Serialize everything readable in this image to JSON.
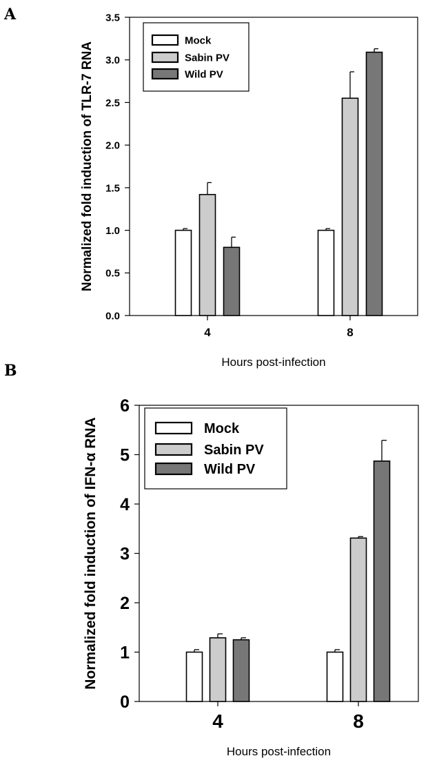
{
  "panels": {
    "a_label": "A",
    "b_label": "B"
  },
  "chart_data": [
    {
      "type": "bar",
      "panel": "A",
      "title": "",
      "xlabel": "Hours post-infection",
      "ylabel": "Normalized fold induction of TLR-7 RNA",
      "categories": [
        "4",
        "8"
      ],
      "ylim": [
        0,
        3.5
      ],
      "yticks": [
        "0.0",
        "0.5",
        "1.0",
        "1.5",
        "2.0",
        "2.5",
        "3.0",
        "3.5"
      ],
      "legend_position": "top-left",
      "series": [
        {
          "name": "Mock",
          "color": "#ffffff",
          "values": [
            1.0,
            1.0
          ],
          "errors": [
            0.02,
            0.02
          ]
        },
        {
          "name": "Sabin PV",
          "color": "#cccccc",
          "values": [
            1.42,
            2.55
          ],
          "errors": [
            0.14,
            0.31
          ]
        },
        {
          "name": "Wild PV",
          "color": "#777777",
          "values": [
            0.8,
            3.09
          ],
          "errors": [
            0.12,
            0.04
          ]
        }
      ]
    },
    {
      "type": "bar",
      "panel": "B",
      "title": "",
      "xlabel": "Hours post-infection",
      "ylabel": "Normalized fold induction of IFN-α RNA",
      "categories": [
        "4",
        "8"
      ],
      "ylim": [
        0,
        6
      ],
      "yticks": [
        "0",
        "1",
        "2",
        "3",
        "4",
        "5",
        "6"
      ],
      "legend_position": "top-left",
      "series": [
        {
          "name": "Mock",
          "color": "#ffffff",
          "values": [
            1.0,
            1.0
          ],
          "errors": [
            0.05,
            0.05
          ]
        },
        {
          "name": "Sabin PV",
          "color": "#cccccc",
          "values": [
            1.29,
            3.31
          ],
          "errors": [
            0.08,
            0.03
          ]
        },
        {
          "name": "Wild PV",
          "color": "#777777",
          "values": [
            1.25,
            4.87
          ],
          "errors": [
            0.04,
            0.42
          ]
        }
      ]
    }
  ]
}
